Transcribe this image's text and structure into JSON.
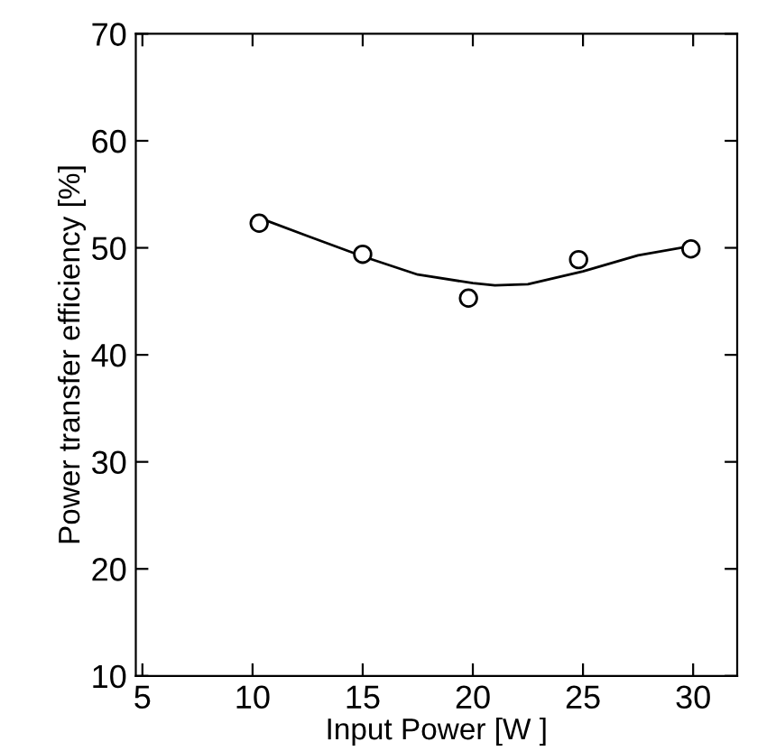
{
  "chart_data": {
    "type": "scatter",
    "xlabel": "Input Power [W ]",
    "ylabel": "Power transfer efficiency [%]",
    "xlim": [
      4.7,
      32
    ],
    "ylim": [
      10,
      70
    ],
    "xticks": [
      5,
      10,
      15,
      20,
      25,
      30
    ],
    "yticks": [
      10,
      20,
      30,
      40,
      50,
      60,
      70
    ],
    "grid": false,
    "legend": false,
    "series": [
      {
        "color": "#000000",
        "marker": "circle",
        "x": [
          10.3,
          15.0,
          19.8,
          24.8,
          29.9
        ],
        "values": [
          52.3,
          49.4,
          45.3,
          48.9,
          49.9
        ]
      },
      {
        "type": "line",
        "color": "#000000",
        "marker": "none",
        "line_style": "solid",
        "x": [
          10.3,
          12.5,
          15,
          17.5,
          20,
          21,
          22.5,
          25,
          27.5,
          30
        ],
        "values": [
          52.8,
          51.1,
          49.2,
          47.5,
          46.7,
          46.5,
          46.6,
          47.8,
          49.3,
          50.2
        ]
      }
    ]
  }
}
